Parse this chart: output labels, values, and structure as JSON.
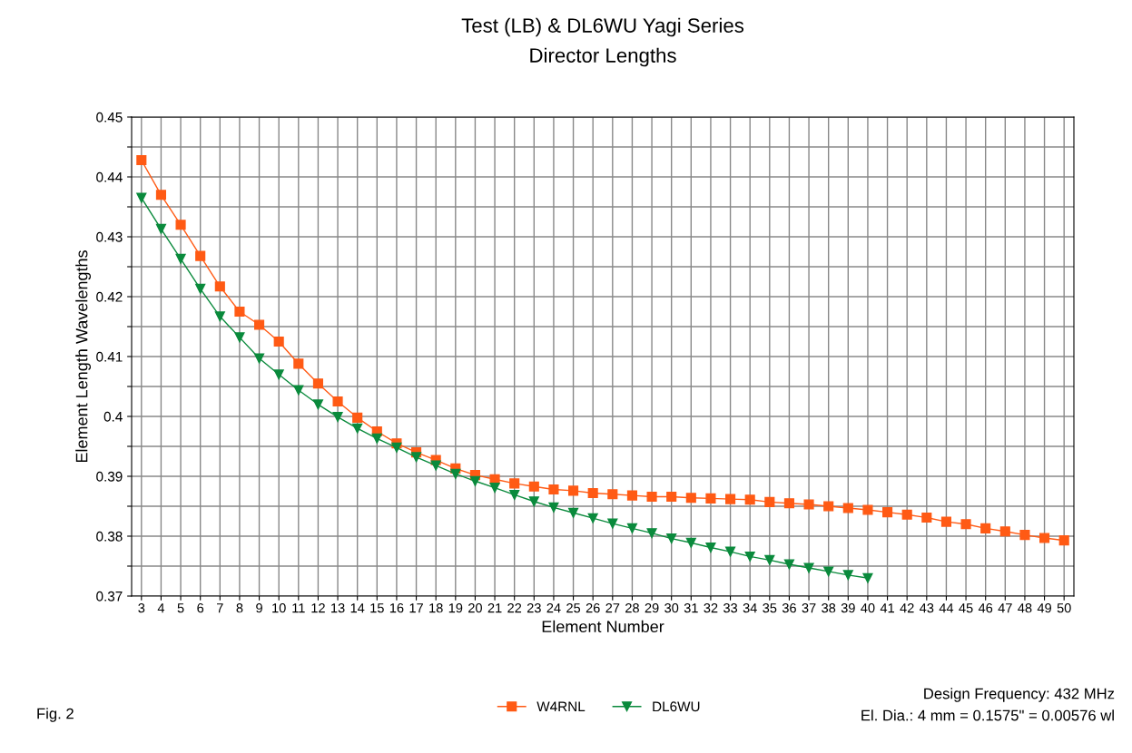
{
  "chart_data": {
    "type": "line",
    "title": "Test (LB) & DL6WU Yagi Series",
    "subtitle": "Director Lengths",
    "xlabel": "Element Number",
    "ylabel": "Element Length Wavelengths",
    "categories": [
      "3",
      "4",
      "5",
      "6",
      "7",
      "8",
      "9",
      "10",
      "11",
      "12",
      "13",
      "14",
      "15",
      "16",
      "17",
      "18",
      "19",
      "20",
      "21",
      "22",
      "23",
      "24",
      "25",
      "26",
      "27",
      "28",
      "29",
      "30",
      "31",
      "32",
      "33",
      "34",
      "35",
      "36",
      "37",
      "38",
      "39",
      "40",
      "41",
      "42",
      "43",
      "44",
      "45",
      "46",
      "47",
      "48",
      "49",
      "50"
    ],
    "series": [
      {
        "name": "W4RNL",
        "color": "#ff5a14",
        "marker": "square",
        "values": [
          0.4428,
          0.437,
          0.432,
          0.4268,
          0.4217,
          0.4175,
          0.4153,
          0.4125,
          0.4088,
          0.4055,
          0.4025,
          0.3998,
          0.3975,
          0.3955,
          0.394,
          0.3927,
          0.3913,
          0.3902,
          0.3895,
          0.3888,
          0.3883,
          0.3878,
          0.3876,
          0.3872,
          0.387,
          0.3868,
          0.3866,
          0.3866,
          0.3864,
          0.3863,
          0.3862,
          0.3861,
          0.3857,
          0.3855,
          0.3853,
          0.385,
          0.3847,
          0.3844,
          0.384,
          0.3836,
          0.3831,
          0.3824,
          0.382,
          0.3813,
          0.3808,
          0.3802,
          0.3797,
          0.3793
        ]
      },
      {
        "name": "DL6WU",
        "color": "#0a8a3c",
        "marker": "triangle",
        "values": [
          0.4365,
          0.4313,
          0.4263,
          0.4213,
          0.4167,
          0.4132,
          0.4097,
          0.407,
          0.4044,
          0.402,
          0.3999,
          0.398,
          0.3963,
          0.3948,
          0.3932,
          0.3918,
          0.3904,
          0.3892,
          0.3881,
          0.3869,
          0.3858,
          0.3848,
          0.3839,
          0.383,
          0.3821,
          0.3813,
          0.3805,
          0.3796,
          0.3789,
          0.3781,
          0.3774,
          0.3766,
          0.376,
          0.3753,
          0.3747,
          0.3741,
          0.3735,
          0.373,
          null,
          null,
          null,
          null,
          null,
          null,
          null,
          null,
          null,
          null
        ]
      }
    ],
    "ylim": [
      0.37,
      0.45
    ],
    "yticks": [
      0.37,
      {
        "value": 0.375,
        "label": null
      },
      0.38,
      {
        "value": 0.385,
        "label": null
      },
      0.39,
      {
        "value": 0.395,
        "label": null
      },
      {
        "value": 0.4,
        "label": "0.4"
      },
      {
        "value": 0.405,
        "label": null
      },
      0.41,
      {
        "value": 0.415,
        "label": null
      },
      0.42,
      {
        "value": 0.425,
        "label": null
      },
      0.43,
      {
        "value": 0.435,
        "label": null
      },
      0.44,
      {
        "value": 0.445,
        "label": null
      },
      0.45
    ],
    "grid": true,
    "legend": "bottom",
    "line_style": "solid",
    "annotations": [
      "Fig. 2",
      "Design Frequency: 432 MHz",
      "El. Dia.: 4 mm = 0.1575\" = 0.00576 wl"
    ]
  }
}
